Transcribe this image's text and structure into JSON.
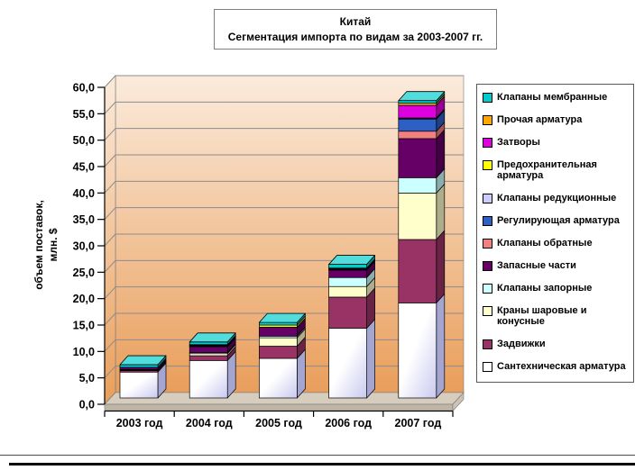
{
  "title": {
    "line1": "Китай",
    "line2": "Сегментация импорта по видам за 2003-2007 гг."
  },
  "y_axis_title": {
    "line1": "объем поставок,",
    "line2": "млн. $"
  },
  "chart_data": {
    "type": "bar",
    "stacked": true,
    "title": "Китай. Сегментация импорта по видам за 2003-2007 гг.",
    "ylabel": "объем поставок, млн. $",
    "ylim": [
      0,
      60
    ],
    "ytick_step": 5,
    "ytick_decimal_comma": true,
    "grid": true,
    "legend_position": "right",
    "categories": [
      "2003 год",
      "2004 год",
      "2005 год",
      "2006 год",
      "2007 год"
    ],
    "series": [
      {
        "name": "Сантехническая арматура",
        "color": "#FFFFFF",
        "fill_type": "gradient",
        "gradient_to": "#C9C9F0",
        "values": [
          4.9,
          7.1,
          7.5,
          13.2,
          18.0
        ]
      },
      {
        "name": "Задвижки",
        "color": "#993366",
        "values": [
          0.3,
          0.9,
          2.3,
          5.9,
          12.0
        ]
      },
      {
        "name": "Краны шаровые и конусные",
        "color": "#FFFFCC",
        "values": [
          0.1,
          0.4,
          1.6,
          2.0,
          8.8
        ]
      },
      {
        "name": "Клапаны запорные",
        "color": "#CCFFFF",
        "values": [
          0.1,
          0.2,
          0.3,
          1.7,
          2.9
        ]
      },
      {
        "name": "Запасные части",
        "color": "#660066",
        "values": [
          0.4,
          1.1,
          1.7,
          1.4,
          7.4
        ]
      },
      {
        "name": "Клапаны обратные",
        "color": "#F28080",
        "values": [
          0.0,
          0.1,
          0.0,
          0.1,
          1.4
        ]
      },
      {
        "name": "Регулирующая арматура",
        "color": "#2E5FC4",
        "values": [
          0.0,
          0.1,
          0.0,
          0.1,
          2.3
        ]
      },
      {
        "name": "Клапаны редукционные",
        "color": "#CCCCFF",
        "values": [
          0.0,
          0.1,
          0.0,
          0.0,
          0.1
        ]
      },
      {
        "name": "Предохранительная арматура",
        "color": "#FFFF00",
        "values": [
          0.0,
          0.1,
          0.4,
          0.1,
          0.1
        ]
      },
      {
        "name": "Затворы",
        "color": "#DE00DE",
        "values": [
          0.0,
          0.0,
          0.0,
          0.0,
          2.4
        ]
      },
      {
        "name": "Прочая арматура",
        "color": "#FFA600",
        "values": [
          0.0,
          0.0,
          0.0,
          0.1,
          0.4
        ]
      },
      {
        "name": "Клапаны мембранные",
        "color": "#00CCCC",
        "values": [
          0.5,
          0.5,
          0.5,
          0.7,
          0.5
        ]
      }
    ],
    "totals": [
      6.3,
      10.6,
      14.3,
      25.3,
      56.3
    ]
  },
  "colors": {
    "wall_top": "#FBEBDC",
    "wall_bottom": "#E99E5B",
    "floor_top": "#D6CDBF",
    "floor_front": "#BFB6A7",
    "floor_side": "#CCC3B4",
    "gridline": "#8C8C8C",
    "axis": "#000000"
  }
}
